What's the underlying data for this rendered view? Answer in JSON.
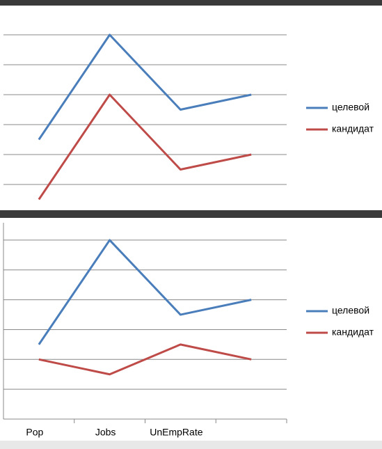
{
  "chart_data": [
    {
      "type": "line",
      "series": [
        {
          "name": "целевой",
          "color": "#4a7ebb",
          "values": [
            2.5,
            6,
            3.5,
            4
          ]
        },
        {
          "name": "кандидат",
          "color": "#be4b48",
          "values": [
            0.5,
            4,
            1.5,
            2
          ]
        }
      ],
      "ylim": [
        0,
        7
      ],
      "yticks": [
        1,
        2,
        3,
        4,
        5,
        6
      ],
      "grid": true
    },
    {
      "type": "line",
      "categories": [
        "Pop",
        "Jobs",
        "UnEmpRate",
        null
      ],
      "series": [
        {
          "name": "целевой",
          "color": "#4a7ebb",
          "values": [
            2.5,
            6,
            3.5,
            4
          ]
        },
        {
          "name": "кандидат",
          "color": "#be4b48",
          "values": [
            2,
            1.5,
            2.5,
            2
          ]
        }
      ],
      "ylim": [
        0,
        6.5
      ],
      "yticks": [
        1,
        2,
        3,
        4,
        5,
        6
      ],
      "grid": true
    }
  ]
}
